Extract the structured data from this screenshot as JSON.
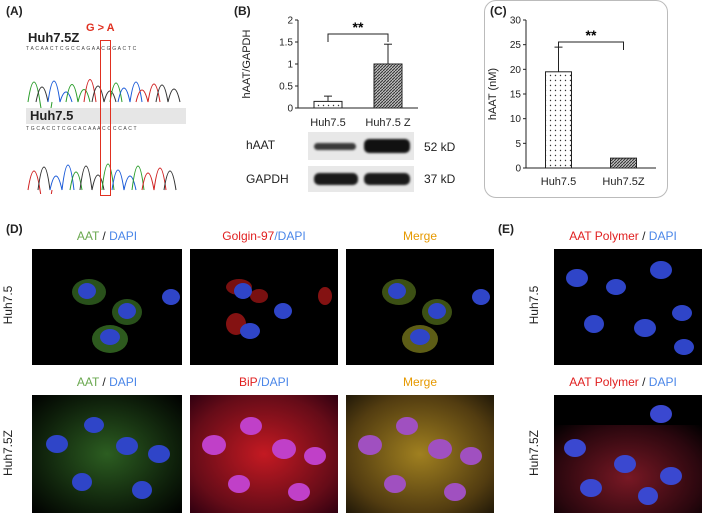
{
  "panels": {
    "a": {
      "letter": "(A)",
      "top_label": "Huh7.5Z",
      "bottom_label": "Huh7.5",
      "mutation": "G > A",
      "seq_top": "T A C A A C T C G C C A G A A C G G A C T C",
      "seq_bottom": "T G C A C C T C G C A C A A A C C C C A C T"
    },
    "b": {
      "letter": "(B)",
      "blot_row1": "hAAT",
      "blot_row2": "GAPDH",
      "kd1": "52 kD",
      "kd2": "37 kD",
      "significance": "**"
    },
    "c": {
      "letter": "(C)",
      "significance": "**"
    },
    "d": {
      "letter": "(D)",
      "row1_label": "Huh7.5",
      "row2_label": "Huh7.5Z",
      "t_aat": "AAT",
      "t_slash": " / ",
      "t_dapi": "DAPI",
      "t_golgin": "Golgin-97",
      "t_slash2": "/",
      "t_bip": "BiP",
      "t_merge": "Merge"
    },
    "e": {
      "letter": "(E)",
      "row1_label": "Huh7.5",
      "row2_label": "Huh7.5Z",
      "t_polymer": "AAT Polymer",
      "t_slash": " / ",
      "t_dapi": "DAPI"
    }
  },
  "colors": {
    "green": "#6aa84f",
    "red": "#e02020",
    "blue": "#4a86e8",
    "orange": "#e69900",
    "highlight_box": "#e03020"
  },
  "chart_data": [
    {
      "type": "bar",
      "categories": [
        "Huh7.5",
        "Huh7.5 Z"
      ],
      "values": [
        0.15,
        1.0
      ],
      "errors": [
        0.12,
        0.45
      ],
      "ylabel": "hAAT/GAPDH",
      "ylim": [
        0,
        2
      ],
      "yticks": [
        "0",
        "0.5",
        "1",
        "1.5",
        "2"
      ],
      "grid": false,
      "significance": "**"
    },
    {
      "type": "bar",
      "categories": [
        "Huh7.5",
        "Huh7.5Z"
      ],
      "values": [
        19.5,
        2.0
      ],
      "errors": [
        5.0,
        0.0
      ],
      "ylabel": "hAAT (nM)",
      "ylim": [
        0,
        30
      ],
      "yticks": [
        "0",
        "5",
        "10",
        "15",
        "20",
        "25",
        "30"
      ],
      "grid": false,
      "significance": "**"
    }
  ]
}
